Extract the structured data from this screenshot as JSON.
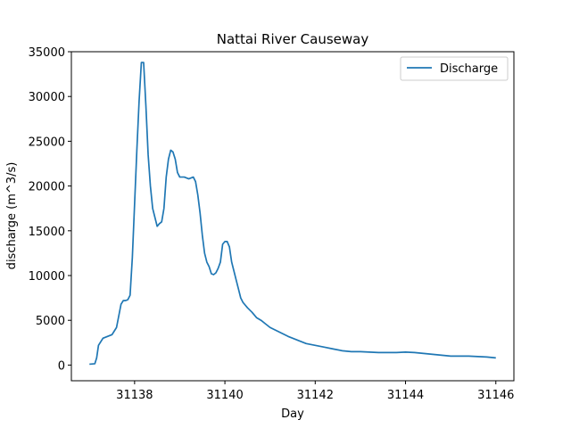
{
  "chart_data": {
    "type": "line",
    "title": "Nattai River Causeway",
    "xlabel": "Day",
    "ylabel": "discharge (m^3/s)",
    "xlim": [
      31136.6,
      31146.4
    ],
    "ylim": [
      -1750,
      35000
    ],
    "xticks": [
      31138,
      31140,
      31142,
      31144,
      31146
    ],
    "yticks": [
      0,
      5000,
      10000,
      15000,
      20000,
      25000,
      30000,
      35000
    ],
    "grid": false,
    "legend_position": "upper right",
    "series": [
      {
        "name": "Discharge",
        "color": "#1f77b4",
        "x": [
          31137.0,
          31137.12,
          31137.16,
          31137.2,
          31137.3,
          31137.4,
          31137.5,
          31137.6,
          31137.7,
          31137.75,
          31137.8,
          31137.85,
          31137.9,
          31137.95,
          31138.0,
          31138.05,
          31138.1,
          31138.15,
          31138.2,
          31138.25,
          31138.3,
          31138.35,
          31138.4,
          31138.45,
          31138.5,
          31138.55,
          31138.6,
          31138.65,
          31138.7,
          31138.75,
          31138.8,
          31138.85,
          31138.9,
          31138.95,
          31139.0,
          31139.05,
          31139.1,
          31139.2,
          31139.3,
          31139.35,
          31139.4,
          31139.45,
          31139.5,
          31139.55,
          31139.6,
          31139.65,
          31139.7,
          31139.75,
          31139.8,
          31139.85,
          31139.9,
          31139.95,
          31140.0,
          31140.05,
          31140.1,
          31140.15,
          31140.2,
          31140.25,
          31140.3,
          31140.35,
          31140.4,
          31140.5,
          31140.6,
          31140.7,
          31140.8,
          31140.9,
          31141.0,
          31141.2,
          31141.4,
          31141.6,
          31141.8,
          31142.0,
          31142.2,
          31142.4,
          31142.6,
          31142.8,
          31143.0,
          31143.2,
          31143.4,
          31143.6,
          31143.8,
          31144.0,
          31144.2,
          31144.4,
          31144.6,
          31144.8,
          31145.0,
          31145.2,
          31145.4,
          31145.6,
          31145.8,
          31146.0
        ],
        "y": [
          100,
          150,
          800,
          2200,
          3000,
          3200,
          3400,
          4200,
          6800,
          7200,
          7200,
          7300,
          7800,
          12000,
          18000,
          24000,
          29500,
          33800,
          33800,
          29000,
          23500,
          20000,
          17500,
          16500,
          15500,
          15800,
          16000,
          17500,
          21000,
          23000,
          24000,
          23800,
          23000,
          21500,
          21000,
          21000,
          21000,
          20800,
          21000,
          20500,
          19000,
          17000,
          14500,
          12500,
          11500,
          11000,
          10200,
          10100,
          10300,
          10800,
          11500,
          13500,
          13800,
          13800,
          13200,
          11500,
          10500,
          9500,
          8500,
          7500,
          7000,
          6400,
          5900,
          5300,
          5000,
          4600,
          4200,
          3700,
          3200,
          2800,
          2400,
          2200,
          2000,
          1800,
          1600,
          1500,
          1500,
          1450,
          1400,
          1400,
          1400,
          1450,
          1400,
          1300,
          1200,
          1100,
          1000,
          1000,
          1000,
          950,
          900,
          800
        ]
      }
    ]
  }
}
